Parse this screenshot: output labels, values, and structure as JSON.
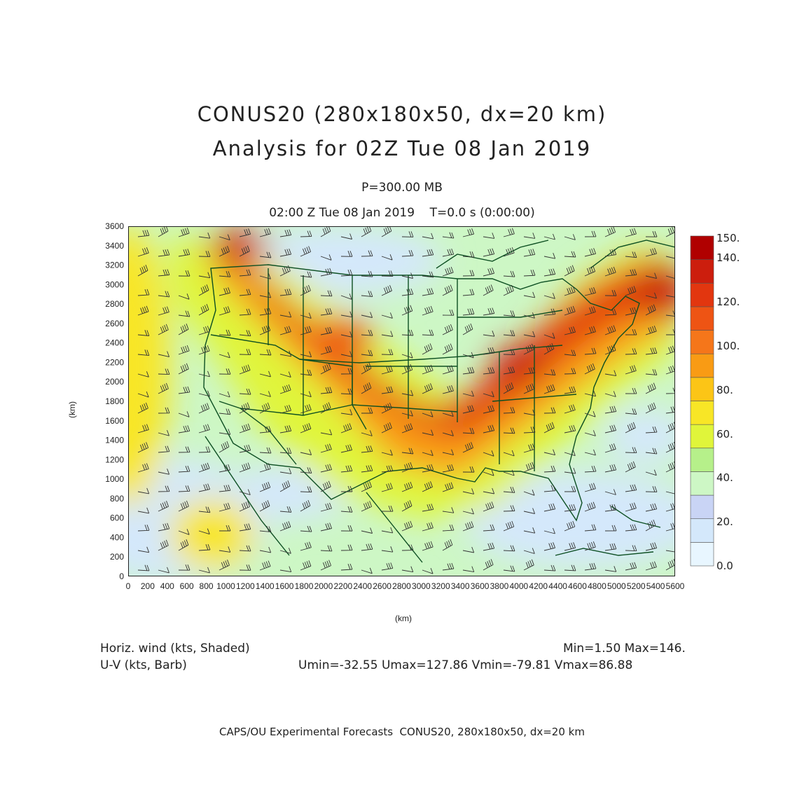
{
  "title": {
    "line1": "CONUS20 (280x180x50, dx=20 km)",
    "line2": "Analysis for 02Z Tue 08 Jan 2019"
  },
  "subtitle": {
    "level": "P=300.00 MB",
    "time": "02:00 Z Tue 08 Jan 2019    T=0.0 s (0:00:00)"
  },
  "axes": {
    "xlabel": "(km)",
    "ylabel": "(km)",
    "xticks": [
      "0",
      "200",
      "400",
      "600",
      "800",
      "1000",
      "1200",
      "1400",
      "1600",
      "1800",
      "2000",
      "2200",
      "2400",
      "2600",
      "2800",
      "3000",
      "3200",
      "3400",
      "3600",
      "3800",
      "4000",
      "4200",
      "4400",
      "4600",
      "4800",
      "5000",
      "5200",
      "5400",
      "5600"
    ],
    "yticks": [
      "0",
      "200",
      "400",
      "600",
      "800",
      "1000",
      "1200",
      "1400",
      "1600",
      "1800",
      "2000",
      "2200",
      "2400",
      "2600",
      "2800",
      "3000",
      "3200",
      "3400",
      "3600"
    ],
    "xlim": [
      0,
      5600
    ],
    "ylim": [
      0,
      3600
    ]
  },
  "colorbar": {
    "labels": [
      "0.0",
      "20.",
      "40.",
      "60.",
      "80.",
      "100.",
      "120.",
      "140.",
      "150."
    ],
    "colors": [
      "#e8f6ff",
      "#d4e8fb",
      "#c9d4f5",
      "#cdf7c5",
      "#b6f08a",
      "#e0f53a",
      "#f8e626",
      "#fcc516",
      "#f99b14",
      "#f5761a",
      "#ee5414",
      "#e2360f",
      "#cc1e0d",
      "#b00000"
    ]
  },
  "legend": {
    "field1": "Horiz. wind (kts, Shaded)",
    "field2": "U-V (kts, Barb)",
    "minmax": "Min=1.50 Max=146.",
    "uv_range": "Umin=-32.55 Umax=127.86 Vmin=-79.81 Vmax=86.88"
  },
  "footer": "CAPS/OU Experimental Forecasts  CONUS20, 280x180x50, dx=20 km",
  "map_colors": {
    "boundary": "#0d4f22",
    "barb": "#333333"
  }
}
